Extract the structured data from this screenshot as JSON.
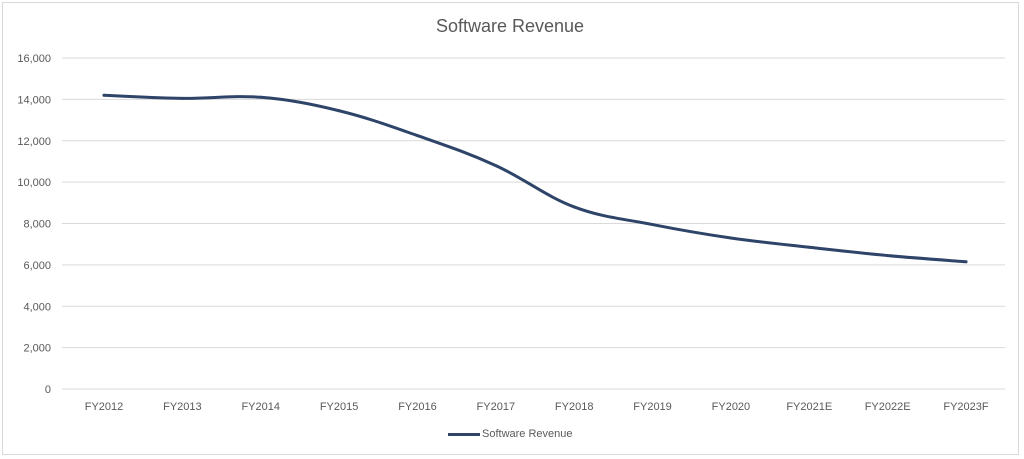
{
  "chart_data": {
    "type": "line",
    "title": "Software Revenue",
    "xlabel": "",
    "ylabel": "",
    "categories": [
      "FY2012",
      "FY2013",
      "FY2014",
      "FY2015",
      "FY2016",
      "FY2017",
      "FY2018",
      "FY2019",
      "FY2020",
      "FY2021E",
      "FY2022E",
      "FY2023F"
    ],
    "series": [
      {
        "name": "Software Revenue",
        "color": "#2e4469",
        "values": [
          14200,
          14050,
          14100,
          13450,
          12250,
          10800,
          8800,
          7950,
          7300,
          6850,
          6450,
          6150
        ]
      }
    ],
    "ylim": [
      0,
      16000
    ],
    "yticks": [
      0,
      2000,
      4000,
      6000,
      8000,
      10000,
      12000,
      14000,
      16000
    ],
    "ytick_labels": [
      "0",
      "2,000",
      "4,000",
      "6,000",
      "8,000",
      "10,000",
      "12,000",
      "14,000",
      "16,000"
    ],
    "grid": true,
    "gridline_color": "#d9d9d9",
    "legend_position": "bottom"
  }
}
